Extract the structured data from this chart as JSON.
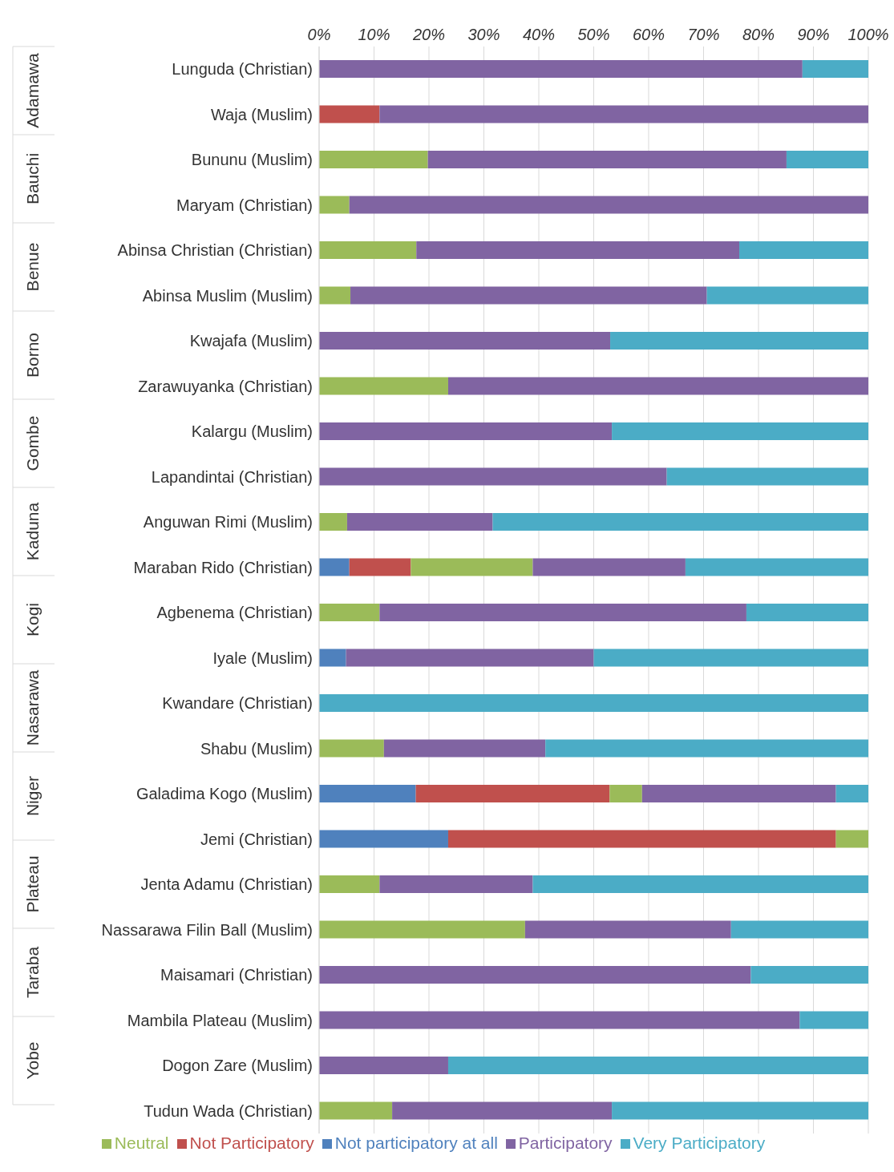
{
  "chart_data": {
    "type": "bar",
    "orientation": "horizontal",
    "stacked": true,
    "categories": [
      "Lunguda (Christian)",
      "Waja (Muslim)",
      "Bununu (Muslim)",
      "Maryam (Christian)",
      "Abinsa Christian (Christian)",
      "Abinsa Muslim (Muslim)",
      "Kwajafa (Muslim)",
      "Zarawuyanka (Christian)",
      "Kalargu (Muslim)",
      "Lapandintai (Christian)",
      "Anguwan Rimi (Muslim)",
      "Maraban Rido (Christian)",
      "Agbenema (Christian)",
      "Iyale (Muslim)",
      "Kwandare (Christian)",
      "Shabu (Muslim)",
      "Galadima Kogo (Muslim)",
      "Jemi (Christian)",
      "Jenta Adamu (Christian)",
      "Nassarawa Filin Ball (Muslim)",
      "Maisamari (Christian)",
      "Mambila Plateau (Muslim)",
      "Dogon Zare (Muslim)",
      "Tudun Wada (Christian)"
    ],
    "series": [
      {
        "name": "Not participatory at all",
        "color": "#4f81bd",
        "values": [
          null,
          null,
          null,
          null,
          null,
          null,
          null,
          null,
          null,
          null,
          null,
          5.5,
          null,
          4.9,
          null,
          null,
          17.6,
          23.5,
          null,
          null,
          null,
          null,
          null,
          null
        ]
      },
      {
        "name": "Not Participatory",
        "color": "#c0504d",
        "values": [
          null,
          11,
          null,
          null,
          null,
          null,
          null,
          null,
          null,
          null,
          null,
          11.2,
          null,
          null,
          null,
          null,
          35.3,
          70.6,
          null,
          null,
          null,
          null,
          null,
          null
        ]
      },
      {
        "name": "Neutral",
        "color": "#9bbb59",
        "values": [
          null,
          null,
          19.8,
          5.5,
          17.7,
          5.7,
          null,
          23.5,
          null,
          null,
          5.1,
          22.2,
          11,
          null,
          null,
          11.8,
          5.9,
          5.9,
          11,
          37.5,
          null,
          null,
          null,
          13.3
        ]
      },
      {
        "name": "Participatory",
        "color": "#8064a2",
        "values": [
          88,
          89,
          65.3,
          94.5,
          58.8,
          64.9,
          53,
          76.5,
          53.3,
          63.3,
          26.5,
          27.8,
          66.8,
          45.1,
          null,
          29.4,
          35.3,
          null,
          27.9,
          37.5,
          78.6,
          87.5,
          23.5,
          40
        ]
      },
      {
        "name": "Very Participatory",
        "color": "#4bacc6",
        "values": [
          12,
          null,
          14.9,
          null,
          23.5,
          29.4,
          47,
          null,
          46.7,
          36.7,
          68.4,
          33.3,
          22.2,
          50,
          100,
          58.8,
          5.9,
          null,
          61.1,
          25,
          21.4,
          12.5,
          76.5,
          46.7
        ]
      }
    ],
    "annotations": [
      "Adamawa",
      "Bauchi",
      "Benue",
      "Borno",
      "Gombe",
      "Kaduna",
      "Kogi",
      "Nasarawa",
      "Niger",
      "Plateau",
      "Taraba",
      "Yobe"
    ],
    "xlim": [
      0,
      100
    ],
    "xticks": [
      {
        "value": 0,
        "label": "0%"
      },
      {
        "value": 10,
        "label": "10%"
      },
      {
        "value": 20,
        "label": "20%"
      },
      {
        "value": 30,
        "label": "30%"
      },
      {
        "value": 40,
        "label": "40%"
      },
      {
        "value": 50,
        "label": "50%"
      },
      {
        "value": 60,
        "label": "60%"
      },
      {
        "value": 70,
        "label": "70%"
      },
      {
        "value": 80,
        "label": "80%"
      },
      {
        "value": 90,
        "label": "90%"
      },
      {
        "value": 100,
        "label": "100%"
      }
    ],
    "grid": "x",
    "legend": "bottom"
  }
}
